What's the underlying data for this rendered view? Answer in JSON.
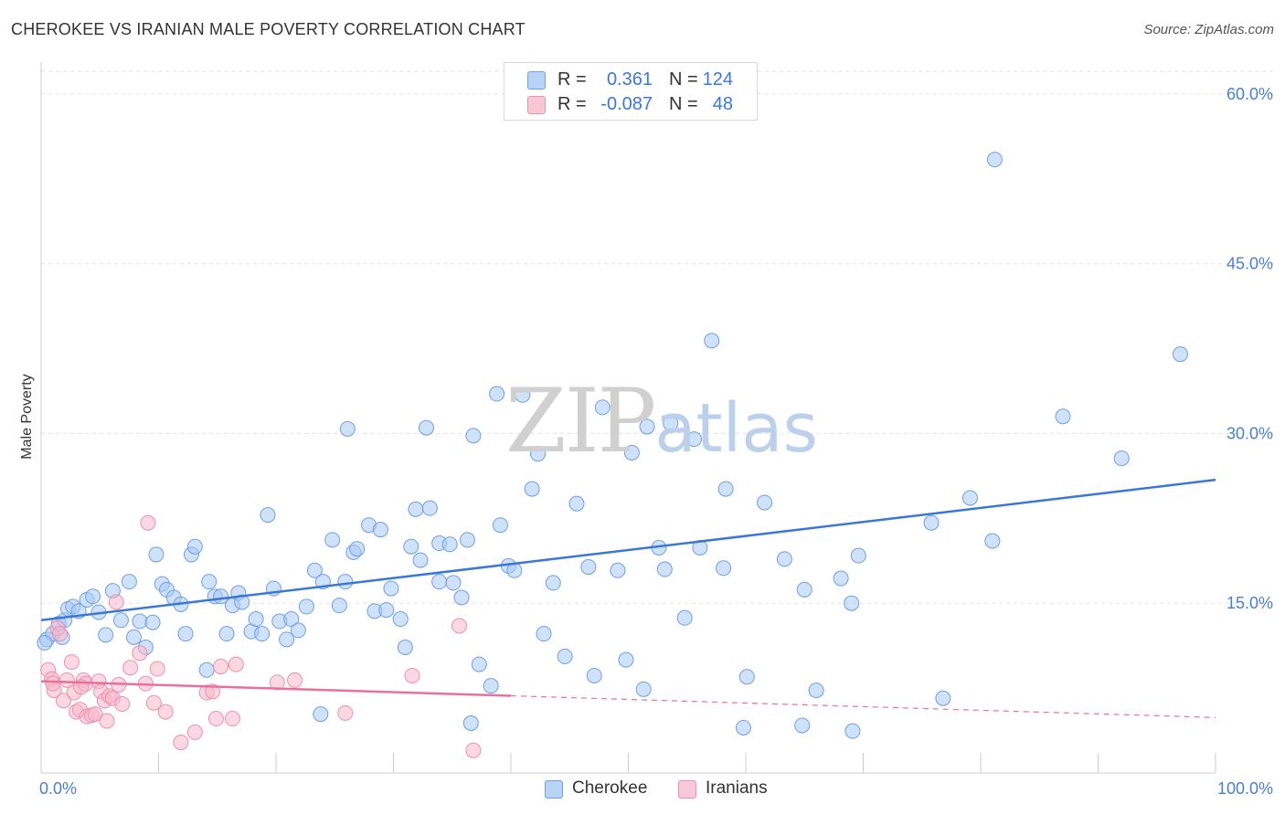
{
  "header": {
    "title": "CHEROKEE VS IRANIAN MALE POVERTY CORRELATION CHART",
    "source": "Source: ZipAtlas.com"
  },
  "watermark": {
    "zip": "ZIP",
    "atlas": "atlas"
  },
  "legend": {
    "rows": [
      {
        "r_label": "R =",
        "r_value": "0.361",
        "n_label": "N =",
        "n_value": "124",
        "color": "#a9c8f5"
      },
      {
        "r_label": "R =",
        "r_value": "-0.087",
        "n_label": "N =",
        "n_value": "48",
        "color": "#f7b8cb"
      }
    ]
  },
  "bottom_legend": {
    "items": [
      {
        "label": "Cherokee",
        "color": "#a9c8f5"
      },
      {
        "label": "Iranians",
        "color": "#f7b8cb"
      }
    ]
  },
  "chart_data": {
    "type": "scatter",
    "title": "CHEROKEE VS IRANIAN MALE POVERTY CORRELATION CHART",
    "xlabel": "",
    "ylabel": "Male Poverty",
    "xlim": [
      0,
      100
    ],
    "ylim": [
      0,
      62
    ],
    "x_tick_labels": [
      "0.0%",
      "100.0%"
    ],
    "y_ticks": [
      15,
      30,
      45,
      60
    ],
    "y_tick_labels": [
      "15.0%",
      "30.0%",
      "45.0%",
      "60.0%"
    ],
    "grid": true,
    "colors": {
      "cherokee": "#3a78d8",
      "iranians": "#e8709a",
      "tick_text": "#4a7fd0"
    },
    "series": [
      {
        "name": "Cherokee",
        "color": "#a9c8f5",
        "stroke": "#6f9fe0",
        "trend": {
          "x0": 0,
          "y0": 13.5,
          "x1": 100,
          "y1": 25.9,
          "solid_until": 100
        },
        "points": [
          [
            0.5,
            11.8
          ],
          [
            1.0,
            12.3
          ],
          [
            1.5,
            13.2
          ],
          [
            1.8,
            12.0
          ],
          [
            2.0,
            13.5
          ],
          [
            2.3,
            14.5
          ],
          [
            2.7,
            14.7
          ],
          [
            3.2,
            14.3
          ],
          [
            3.9,
            15.3
          ],
          [
            4.4,
            15.6
          ],
          [
            4.9,
            14.2
          ],
          [
            5.5,
            12.2
          ],
          [
            6.1,
            16.1
          ],
          [
            6.8,
            13.5
          ],
          [
            7.5,
            16.9
          ],
          [
            7.9,
            12.0
          ],
          [
            8.4,
            13.4
          ],
          [
            8.9,
            11.1
          ],
          [
            9.5,
            13.3
          ],
          [
            9.8,
            19.3
          ],
          [
            10.3,
            16.7
          ],
          [
            10.7,
            16.2
          ],
          [
            11.3,
            15.5
          ],
          [
            11.9,
            14.9
          ],
          [
            12.3,
            12.3
          ],
          [
            12.8,
            19.3
          ],
          [
            13.1,
            20.0
          ],
          [
            14.1,
            9.1
          ],
          [
            14.3,
            16.9
          ],
          [
            14.8,
            15.6
          ],
          [
            15.3,
            15.6
          ],
          [
            15.8,
            12.3
          ],
          [
            16.3,
            14.8
          ],
          [
            16.8,
            15.9
          ],
          [
            17.1,
            15.1
          ],
          [
            17.9,
            12.5
          ],
          [
            18.3,
            13.6
          ],
          [
            18.8,
            12.3
          ],
          [
            19.3,
            22.8
          ],
          [
            19.8,
            16.3
          ],
          [
            20.3,
            13.4
          ],
          [
            20.9,
            11.8
          ],
          [
            21.3,
            13.6
          ],
          [
            21.9,
            12.6
          ],
          [
            22.6,
            14.7
          ],
          [
            23.3,
            17.9
          ],
          [
            23.8,
            5.2
          ],
          [
            24.0,
            16.9
          ],
          [
            24.8,
            20.6
          ],
          [
            25.4,
            14.8
          ],
          [
            25.9,
            16.9
          ],
          [
            26.1,
            30.4
          ],
          [
            26.6,
            19.5
          ],
          [
            26.9,
            19.8
          ],
          [
            27.9,
            21.9
          ],
          [
            28.4,
            14.3
          ],
          [
            28.9,
            21.5
          ],
          [
            29.4,
            14.4
          ],
          [
            29.8,
            16.3
          ],
          [
            30.6,
            13.6
          ],
          [
            31.0,
            11.1
          ],
          [
            31.5,
            20.0
          ],
          [
            31.9,
            23.3
          ],
          [
            32.3,
            18.8
          ],
          [
            32.8,
            30.5
          ],
          [
            33.1,
            23.4
          ],
          [
            33.9,
            20.3
          ],
          [
            33.9,
            16.9
          ],
          [
            34.8,
            20.2
          ],
          [
            35.1,
            16.8
          ],
          [
            35.8,
            15.5
          ],
          [
            36.3,
            20.6
          ],
          [
            36.6,
            4.4
          ],
          [
            36.8,
            29.8
          ],
          [
            37.3,
            9.6
          ],
          [
            38.3,
            7.7
          ],
          [
            38.8,
            33.5
          ],
          [
            39.1,
            21.9
          ],
          [
            39.8,
            18.3
          ],
          [
            40.3,
            17.9
          ],
          [
            41.0,
            33.4
          ],
          [
            41.8,
            25.1
          ],
          [
            42.3,
            28.2
          ],
          [
            42.8,
            12.3
          ],
          [
            43.6,
            16.8
          ],
          [
            44.6,
            10.3
          ],
          [
            45.6,
            23.8
          ],
          [
            46.6,
            18.2
          ],
          [
            47.1,
            8.6
          ],
          [
            47.8,
            32.3
          ],
          [
            49.1,
            17.9
          ],
          [
            49.8,
            10.0
          ],
          [
            50.3,
            28.3
          ],
          [
            51.3,
            7.4
          ],
          [
            51.6,
            30.6
          ],
          [
            52.6,
            19.9
          ],
          [
            53.1,
            18.0
          ],
          [
            53.6,
            30.9
          ],
          [
            54.8,
            13.7
          ],
          [
            55.6,
            29.5
          ],
          [
            56.1,
            19.9
          ],
          [
            57.1,
            38.2
          ],
          [
            58.1,
            18.1
          ],
          [
            58.3,
            25.1
          ],
          [
            59.8,
            4.0
          ],
          [
            60.1,
            8.5
          ],
          [
            61.6,
            23.9
          ],
          [
            63.3,
            18.9
          ],
          [
            64.8,
            4.2
          ],
          [
            65.0,
            16.2
          ],
          [
            66.0,
            7.3
          ],
          [
            68.1,
            17.2
          ],
          [
            69.0,
            15.0
          ],
          [
            69.1,
            3.7
          ],
          [
            69.6,
            19.2
          ],
          [
            75.8,
            22.1
          ],
          [
            76.8,
            6.6
          ],
          [
            79.1,
            24.3
          ],
          [
            81.0,
            20.5
          ],
          [
            81.2,
            54.2
          ],
          [
            87.0,
            31.5
          ],
          [
            92.0,
            27.8
          ],
          [
            97.0,
            37.0
          ],
          [
            0.3,
            11.5
          ]
        ]
      },
      {
        "name": "Iranians",
        "color": "#f7b8cb",
        "stroke": "#ec8fae",
        "trend": {
          "x0": 0,
          "y0": 8.1,
          "x1": 100,
          "y1": 4.9,
          "solid_until": 40
        },
        "points": [
          [
            0.6,
            9.1
          ],
          [
            0.9,
            8.3
          ],
          [
            1.1,
            7.3
          ],
          [
            1.4,
            12.8
          ],
          [
            1.6,
            12.3
          ],
          [
            1.9,
            6.4
          ],
          [
            2.2,
            8.2
          ],
          [
            2.6,
            9.8
          ],
          [
            2.8,
            7.1
          ],
          [
            3.0,
            5.4
          ],
          [
            3.3,
            5.6
          ],
          [
            3.6,
            8.2
          ],
          [
            3.8,
            7.9
          ],
          [
            3.9,
            5.0
          ],
          [
            4.3,
            5.1
          ],
          [
            4.6,
            5.2
          ],
          [
            4.9,
            8.1
          ],
          [
            5.1,
            7.2
          ],
          [
            5.4,
            6.4
          ],
          [
            5.6,
            4.6
          ],
          [
            5.8,
            6.8
          ],
          [
            6.1,
            6.6
          ],
          [
            6.4,
            15.1
          ],
          [
            6.6,
            7.8
          ],
          [
            6.9,
            6.1
          ],
          [
            7.6,
            9.3
          ],
          [
            8.4,
            10.6
          ],
          [
            8.9,
            7.9
          ],
          [
            9.1,
            22.1
          ],
          [
            9.6,
            6.2
          ],
          [
            9.9,
            9.2
          ],
          [
            10.6,
            5.4
          ],
          [
            11.9,
            2.7
          ],
          [
            13.1,
            3.6
          ],
          [
            14.1,
            7.1
          ],
          [
            14.6,
            7.2
          ],
          [
            14.9,
            4.8
          ],
          [
            15.3,
            9.4
          ],
          [
            16.3,
            4.8
          ],
          [
            16.6,
            9.6
          ],
          [
            20.1,
            8.0
          ],
          [
            21.6,
            8.2
          ],
          [
            25.9,
            5.3
          ],
          [
            31.6,
            8.6
          ],
          [
            35.6,
            13.0
          ],
          [
            36.8,
            2.0
          ],
          [
            1.0,
            7.9
          ],
          [
            3.4,
            7.6
          ]
        ]
      }
    ]
  }
}
